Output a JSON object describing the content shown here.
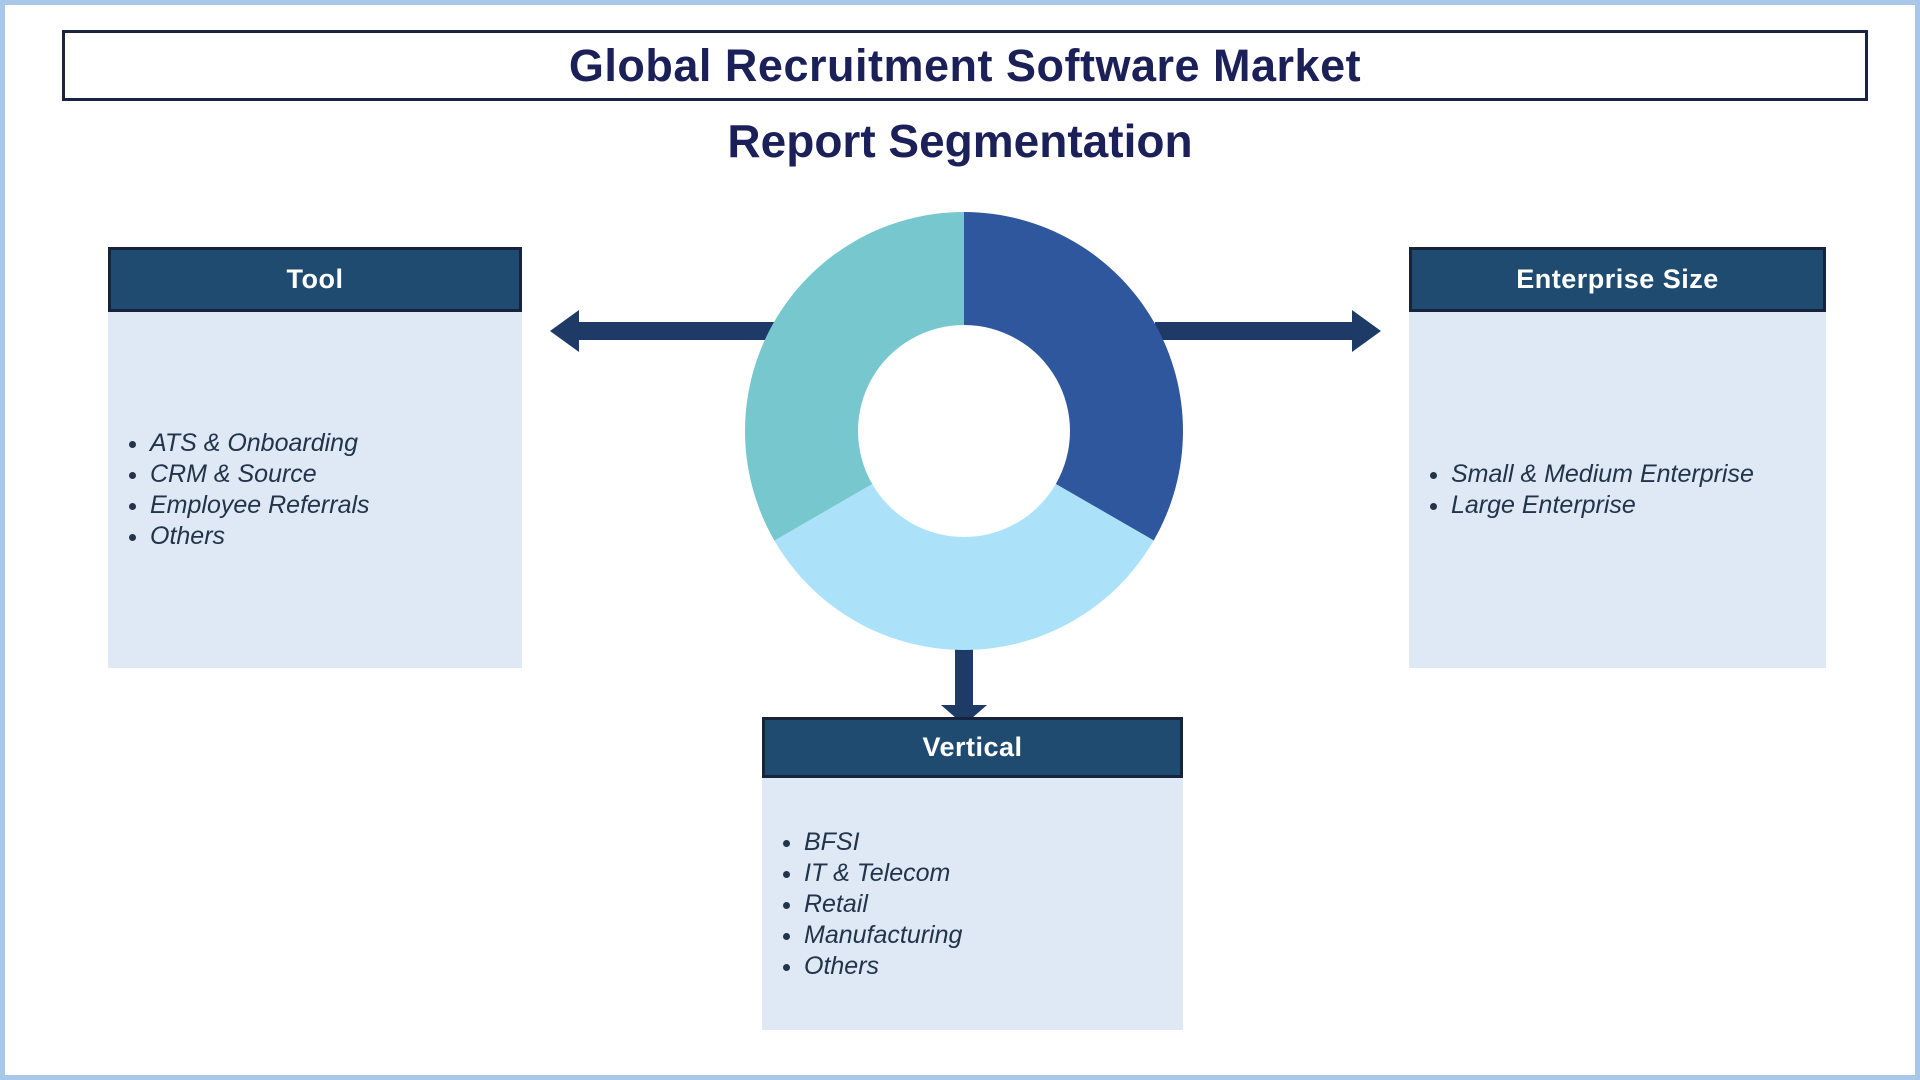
{
  "header": {
    "title": "Global Recruitment Software Market",
    "subtitle": "Report Segmentation"
  },
  "boxes": {
    "tool": {
      "header": "Tool",
      "items": [
        "ATS & Onboarding",
        "CRM & Source",
        "Employee Referrals",
        "Others"
      ]
    },
    "enterprise_size": {
      "header": "Enterprise Size",
      "items": [
        "Small & Medium Enterprise",
        "Large Enterprise"
      ]
    },
    "vertical": {
      "header": "Vertical",
      "items": [
        "BFSI",
        "IT & Telecom",
        "Retail",
        "Manufacturing",
        "Others"
      ]
    }
  },
  "chart_data": {
    "type": "pie",
    "variant": "donut",
    "title": "",
    "values": [
      33.33,
      33.33,
      33.34
    ],
    "colors": [
      "#2F579E",
      "#ABE2FA",
      "#76C8CE"
    ],
    "order": "clockwise-from-top",
    "inner_radius_ratio": 0.48,
    "legend": "none",
    "data_labels": "none"
  },
  "colors": {
    "title_text": "#1B2158",
    "title_box_border": "#1A2342",
    "segment_header_bg": "#1F4B71",
    "segment_header_border": "#16233B",
    "segment_header_text": "#FFFFFF",
    "segment_body_bg": "#DEE9F5",
    "item_text": "#22334A",
    "arrow": "#1E3A66",
    "page_border": "#A9C7E6"
  }
}
